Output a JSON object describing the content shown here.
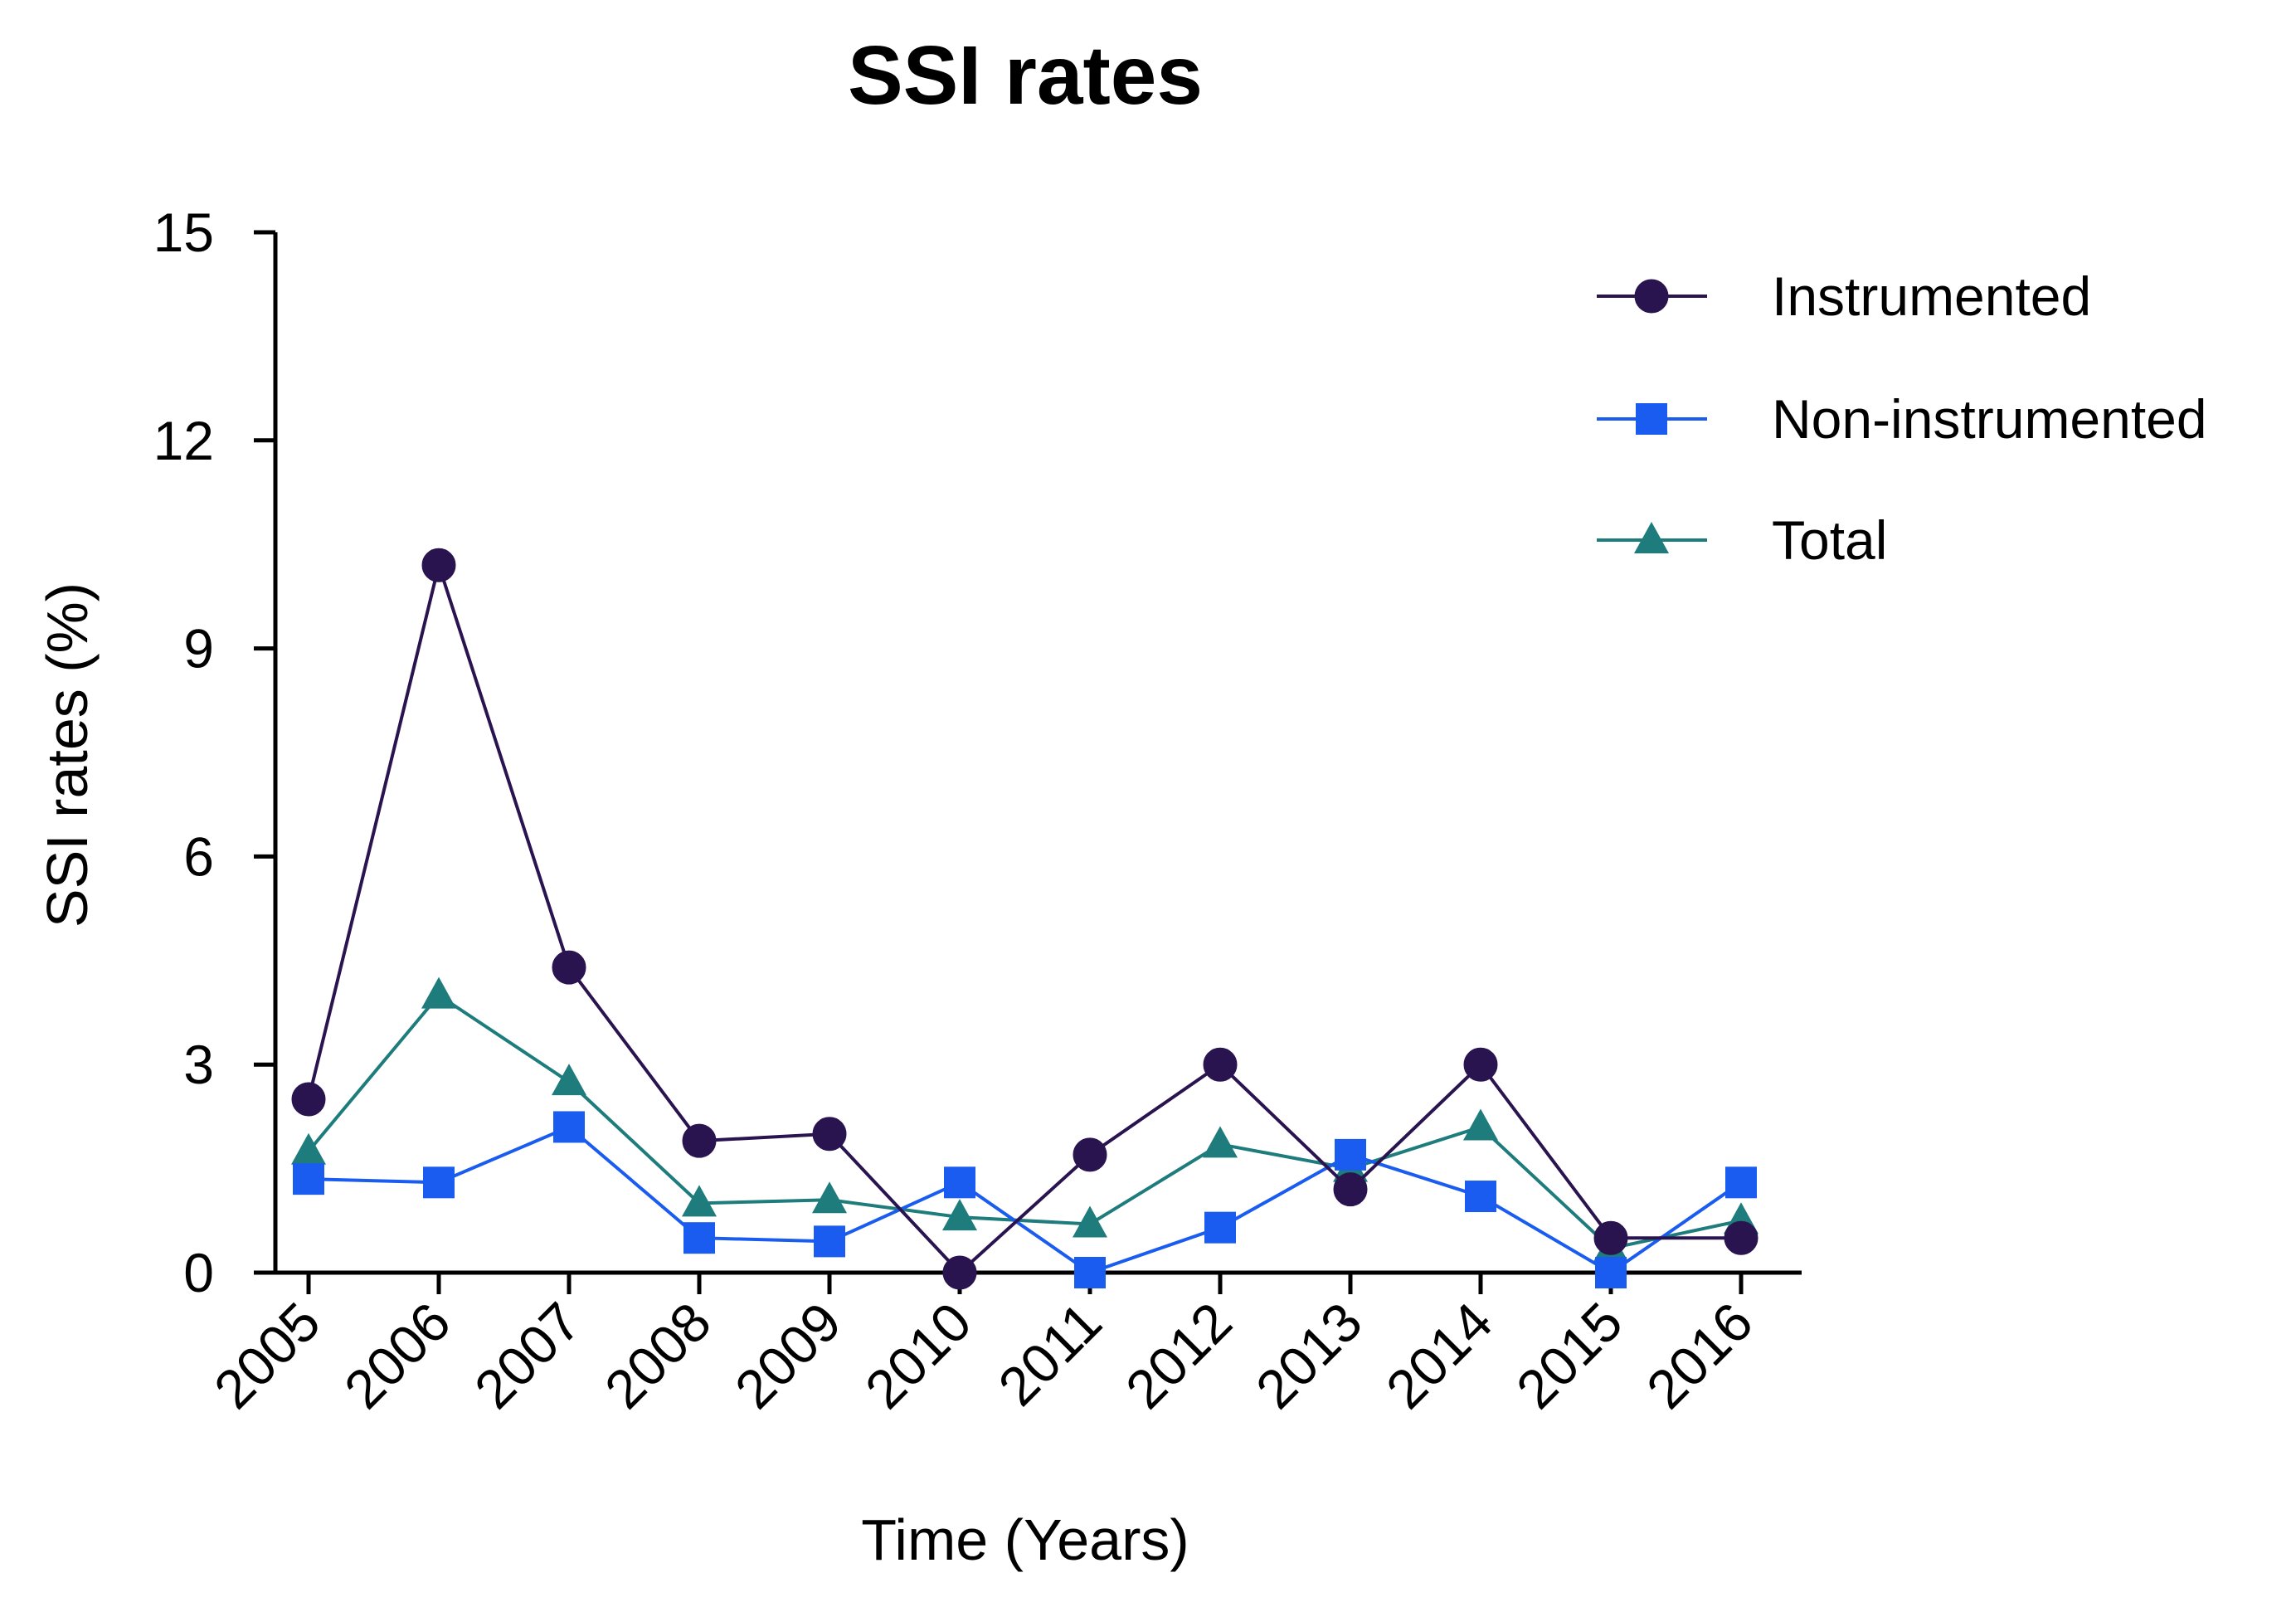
{
  "chart_data": {
    "type": "line",
    "title": "SSI rates",
    "xlabel": "Time (Years)",
    "ylabel": "SSI rates (%)",
    "ylim": [
      0,
      15
    ],
    "yticks": [
      0,
      3,
      6,
      9,
      12,
      15
    ],
    "categories": [
      "2005",
      "2006",
      "2007",
      "2008",
      "2009",
      "2010",
      "2011",
      "2012",
      "2013",
      "2014",
      "2015",
      "2016"
    ],
    "grid": false,
    "legend_position": "top-right",
    "series": [
      {
        "name": "Instrumented",
        "marker": "circle",
        "color": "#2a1450",
        "values": [
          2.5,
          10.2,
          4.4,
          1.9,
          2.0,
          0.0,
          1.7,
          3.0,
          1.2,
          3.0,
          0.5,
          0.5
        ]
      },
      {
        "name": "Non-instrumented",
        "marker": "square",
        "color": "#1a5cf0",
        "values": [
          1.35,
          1.3,
          2.1,
          0.5,
          0.45,
          1.3,
          0.0,
          0.65,
          1.7,
          1.1,
          0.0,
          1.3
        ]
      },
      {
        "name": "Total",
        "marker": "triangle",
        "color": "#1e7c7c",
        "values": [
          1.75,
          4.0,
          2.75,
          1.0,
          1.05,
          0.8,
          0.7,
          1.85,
          1.5,
          2.1,
          0.35,
          0.75
        ]
      }
    ]
  }
}
